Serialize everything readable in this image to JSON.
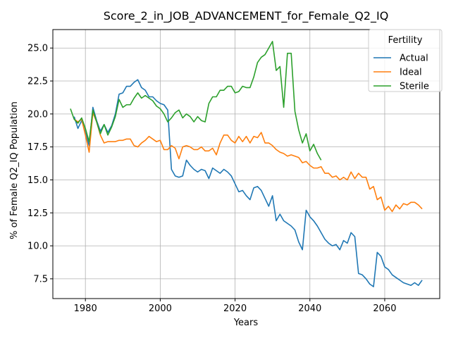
{
  "chart_data": {
    "type": "line",
    "title": "Score_2_in_JOB_ADVANCEMENT_for_Female_Q2_IQ",
    "xlabel": "Years",
    "ylabel": "% of Female Q2_IQ Population",
    "xlim": [
      1971.3,
      2074.7
    ],
    "ylim": [
      6.0,
      26.4
    ],
    "xticks": [
      1980,
      2000,
      2020,
      2040,
      2060
    ],
    "yticks": [
      7.5,
      10.0,
      12.5,
      15.0,
      17.5,
      20.0,
      22.5,
      25.0
    ],
    "ytick_labels": [
      "7.5",
      "10.0",
      "12.5",
      "15.0",
      "17.5",
      "20.0",
      "22.5",
      "25.0"
    ],
    "grid": true,
    "legend": {
      "title": "Fertility",
      "position": "top-right"
    },
    "series": [
      {
        "name": "Actual",
        "color": "#1f77b4",
        "x": [
          1977,
          1978,
          1979,
          1980,
          1981,
          1982,
          1983,
          1984,
          1985,
          1986,
          1987,
          1988,
          1989,
          1990,
          1991,
          1992,
          1993,
          1994,
          1995,
          1996,
          1997,
          1998,
          1999,
          2000,
          2001,
          2002,
          2003,
          2004,
          2005,
          2006,
          2007,
          2008,
          2009,
          2010,
          2011,
          2012,
          2013,
          2014,
          2015,
          2016,
          2017,
          2018,
          2019,
          2020,
          2021,
          2022,
          2023,
          2024,
          2025,
          2026,
          2027,
          2028,
          2029,
          2030,
          2031,
          2032,
          2033,
          2034,
          2035,
          2036,
          2037,
          2038,
          2039,
          2040,
          2041,
          2042,
          2043,
          2044,
          2045,
          2046,
          2047,
          2048,
          2049,
          2050,
          2051,
          2052,
          2053,
          2054,
          2055,
          2056,
          2057,
          2058,
          2059,
          2060,
          2061,
          2062,
          2063,
          2064,
          2065,
          2066,
          2067,
          2068,
          2069,
          2070
        ],
        "values": [
          19.8,
          18.9,
          19.5,
          18.6,
          17.6,
          20.5,
          19.5,
          18.7,
          19.2,
          18.6,
          19.1,
          20.0,
          21.5,
          21.6,
          22.1,
          22.1,
          22.4,
          22.6,
          22.0,
          21.8,
          21.3,
          21.3,
          21.0,
          20.8,
          20.7,
          20.3,
          15.8,
          15.3,
          15.2,
          15.3,
          16.5,
          16.1,
          15.8,
          15.6,
          15.8,
          15.7,
          15.1,
          15.9,
          15.7,
          15.5,
          15.8,
          15.6,
          15.3,
          14.7,
          14.1,
          14.2,
          13.8,
          13.5,
          14.4,
          14.5,
          14.2,
          13.6,
          13.0,
          13.8,
          11.9,
          12.4,
          11.9,
          11.7,
          11.5,
          11.2,
          10.3,
          9.7,
          12.7,
          12.2,
          11.9,
          11.5,
          11.0,
          10.5,
          10.2,
          10.0,
          10.1,
          9.7,
          10.4,
          10.2,
          11.0,
          10.7,
          7.9,
          7.8,
          7.5,
          7.1,
          6.9,
          9.5,
          9.2,
          8.4,
          8.2,
          7.8,
          7.6,
          7.4,
          7.2,
          7.1,
          7.0,
          7.2,
          7.0,
          7.4
        ]
      },
      {
        "name": "Ideal",
        "color": "#ff7f0e",
        "x": [
          1977,
          1978,
          1979,
          1980,
          1981,
          1982,
          1983,
          1984,
          1985,
          1986,
          1987,
          1988,
          1989,
          1990,
          1991,
          1992,
          1993,
          1994,
          1995,
          1996,
          1997,
          1998,
          1999,
          2000,
          2001,
          2002,
          2003,
          2004,
          2005,
          2006,
          2007,
          2008,
          2009,
          2010,
          2011,
          2012,
          2013,
          2014,
          2015,
          2016,
          2017,
          2018,
          2019,
          2020,
          2021,
          2022,
          2023,
          2024,
          2025,
          2026,
          2027,
          2028,
          2029,
          2030,
          2031,
          2032,
          2033,
          2034,
          2035,
          2036,
          2037,
          2038,
          2039,
          2040,
          2041,
          2042,
          2043,
          2044,
          2045,
          2046,
          2047,
          2048,
          2049,
          2050,
          2051,
          2052,
          2053,
          2054,
          2055,
          2056,
          2057,
          2058,
          2059,
          2060,
          2061,
          2062,
          2063,
          2064,
          2065,
          2066,
          2067,
          2068,
          2069,
          2070
        ],
        "values": [
          19.6,
          19.4,
          19.6,
          18.4,
          17.1,
          20.1,
          19.4,
          18.4,
          17.8,
          17.9,
          17.9,
          17.9,
          18.0,
          18.0,
          18.1,
          18.1,
          17.6,
          17.5,
          17.8,
          18.0,
          18.3,
          18.1,
          17.9,
          18.0,
          17.3,
          17.3,
          17.6,
          17.4,
          16.6,
          17.5,
          17.6,
          17.5,
          17.3,
          17.3,
          17.5,
          17.2,
          17.2,
          17.4,
          16.9,
          17.8,
          18.4,
          18.4,
          18.0,
          17.8,
          18.3,
          17.9,
          18.3,
          17.8,
          18.3,
          18.2,
          18.6,
          17.8,
          17.8,
          17.6,
          17.3,
          17.1,
          17.0,
          16.8,
          16.9,
          16.8,
          16.7,
          16.3,
          16.4,
          16.1,
          15.9,
          15.9,
          16.0,
          15.5,
          15.5,
          15.2,
          15.3,
          15.0,
          15.2,
          15.0,
          15.6,
          15.1,
          15.5,
          15.2,
          15.2,
          14.3,
          14.5,
          13.5,
          13.7,
          12.7,
          13.0,
          12.6,
          13.1,
          12.8,
          13.2,
          13.1,
          13.3,
          13.3,
          13.1,
          12.8
        ]
      },
      {
        "name": "Sterile",
        "color": "#2ca02c",
        "x": [
          1976,
          1977,
          1978,
          1979,
          1980,
          1981,
          1982,
          1983,
          1984,
          1985,
          1986,
          1987,
          1988,
          1989,
          1990,
          1991,
          1992,
          1993,
          1994,
          1995,
          1996,
          1997,
          1998,
          1999,
          2000,
          2001,
          2002,
          2003,
          2004,
          2005,
          2006,
          2007,
          2008,
          2009,
          2010,
          2011,
          2012,
          2013,
          2014,
          2015,
          2016,
          2017,
          2018,
          2019,
          2020,
          2021,
          2022,
          2023,
          2024,
          2025,
          2026,
          2027,
          2028,
          2029,
          2030,
          2031,
          2032,
          2033,
          2034,
          2035,
          2036,
          2037,
          2038,
          2039,
          2040,
          2041,
          2042,
          2043,
          2044
        ],
        "values": [
          20.4,
          19.6,
          19.3,
          19.7,
          18.9,
          17.9,
          20.3,
          19.4,
          18.5,
          19.2,
          18.4,
          19.0,
          19.8,
          21.1,
          20.5,
          20.7,
          20.7,
          21.2,
          21.6,
          21.2,
          21.4,
          21.2,
          21.0,
          20.6,
          20.4,
          20.0,
          19.4,
          19.7,
          20.1,
          20.3,
          19.7,
          20.0,
          19.8,
          19.4,
          19.8,
          19.5,
          19.4,
          20.8,
          21.3,
          21.3,
          21.8,
          21.8,
          22.1,
          22.1,
          21.6,
          21.7,
          22.1,
          22.0,
          22.0,
          22.8,
          23.9,
          24.3,
          24.5,
          25.0,
          25.5,
          23.3,
          23.6,
          20.5,
          24.6,
          24.6,
          20.2,
          18.8,
          17.8,
          18.5,
          17.2,
          17.7,
          17.0,
          16.5,
          null
        ]
      }
    ]
  }
}
